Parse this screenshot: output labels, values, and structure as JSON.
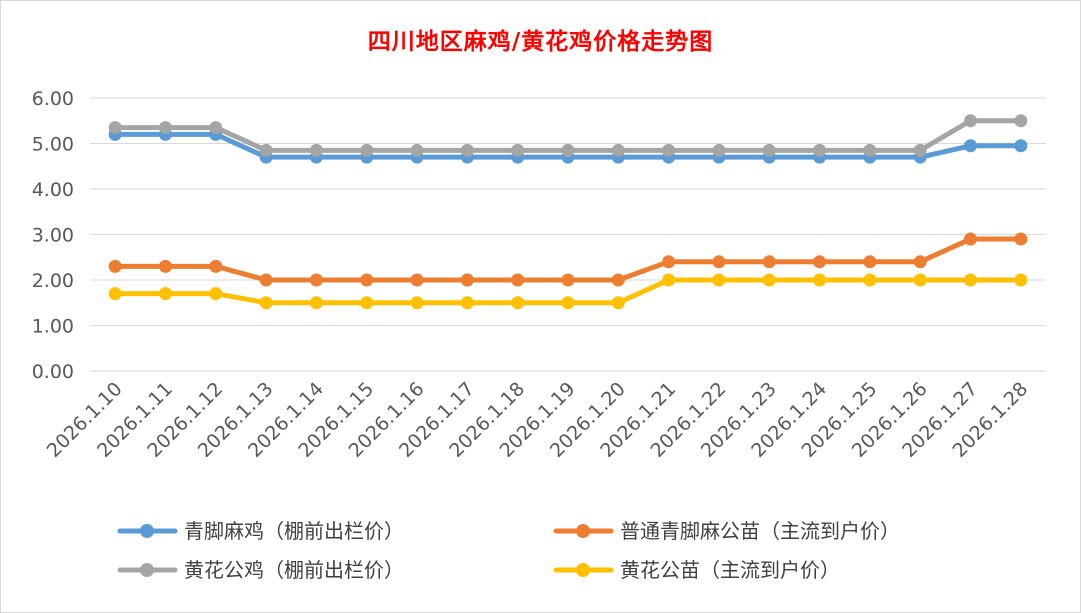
{
  "chart_data": {
    "type": "line",
    "title": "四川地区麻鸡/黄花鸡价格走势图",
    "xlabel": "",
    "ylabel": "",
    "ylim": [
      0,
      6
    ],
    "yticks": [
      "0.00",
      "1.00",
      "2.00",
      "3.00",
      "4.00",
      "5.00",
      "6.00"
    ],
    "grid": true,
    "legend_position": "bottom",
    "categories": [
      "2026.1.10",
      "2026.1.11",
      "2026.1.12",
      "2026.1.13",
      "2026.1.14",
      "2026.1.15",
      "2026.1.16",
      "2026.1.17",
      "2026.1.18",
      "2026.1.19",
      "2026.1.20",
      "2026.1.21",
      "2026.1.22",
      "2026.1.23",
      "2026.1.24",
      "2026.1.25",
      "2026.1.26",
      "2026.1.27",
      "2026.1.28"
    ],
    "series": [
      {
        "name": "青脚麻鸡（棚前出栏价）",
        "color": "#5b9bd5",
        "values": [
          5.2,
          5.2,
          5.2,
          4.7,
          4.7,
          4.7,
          4.7,
          4.7,
          4.7,
          4.7,
          4.7,
          4.7,
          4.7,
          4.7,
          4.7,
          4.7,
          4.7,
          4.95,
          4.95
        ]
      },
      {
        "name": "普通青脚麻公苗（主流到户价）",
        "color": "#ed7d31",
        "values": [
          2.3,
          2.3,
          2.3,
          2.0,
          2.0,
          2.0,
          2.0,
          2.0,
          2.0,
          2.0,
          2.0,
          2.4,
          2.4,
          2.4,
          2.4,
          2.4,
          2.4,
          2.9,
          2.9
        ]
      },
      {
        "name": "黄花公鸡（棚前出栏价）",
        "color": "#a5a5a5",
        "values": [
          5.35,
          5.35,
          5.35,
          4.85,
          4.85,
          4.85,
          4.85,
          4.85,
          4.85,
          4.85,
          4.85,
          4.85,
          4.85,
          4.85,
          4.85,
          4.85,
          4.85,
          5.5,
          5.5
        ]
      },
      {
        "name": "黄花公苗（主流到户价）",
        "color": "#ffc000",
        "values": [
          1.7,
          1.7,
          1.7,
          1.5,
          1.5,
          1.5,
          1.5,
          1.5,
          1.5,
          1.5,
          1.5,
          2.0,
          2.0,
          2.0,
          2.0,
          2.0,
          2.0,
          2.0,
          2.0
        ]
      }
    ]
  }
}
